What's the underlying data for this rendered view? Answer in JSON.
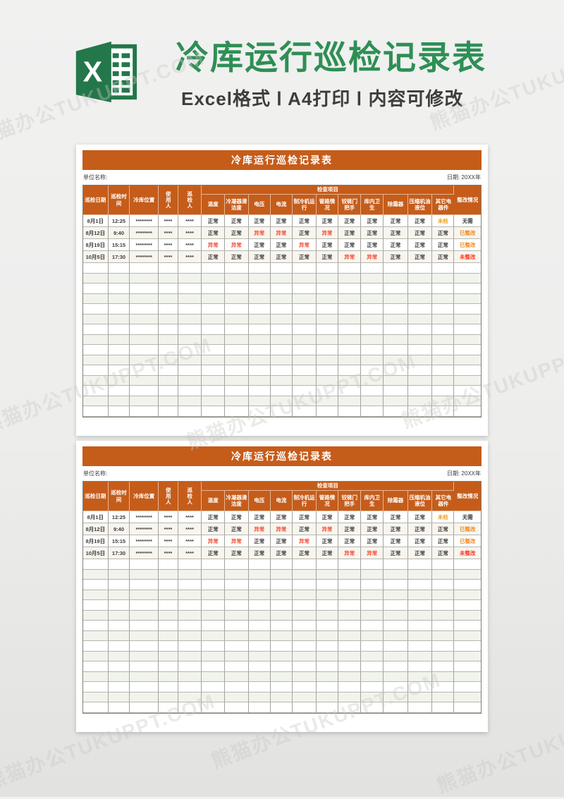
{
  "page": {
    "title": "冷库运行巡检记录表",
    "subtitle": "Excel格式 Ⅰ A4打印 Ⅰ 内容可修改",
    "watermark": "熊猫办公TUKUPPT.COM",
    "logo": "excel-logo",
    "colors": {
      "title_green": "#2e8f55",
      "logo_green": "#23774a",
      "accent_orange": "#c55c1a",
      "subtitle_gray": "#3d3d3d",
      "status_normal": "#3c3c3c",
      "status_abnormal": "#f74a31",
      "status_unchecked": "#f0a21c",
      "status_rectified": "#ef8a1f",
      "status_unrectified": "#f8381c"
    },
    "status_colors": {
      "正常": "#3c3c3c",
      "异常": "#f74a31",
      "未检": "#f0a21c",
      "已整改": "#ef8a1f",
      "未整改": "#f8381c",
      "无需": "#3c3c3c"
    }
  },
  "tables": [
    {
      "title": "冷库运行巡检记录表",
      "unit_label": "单位名称:",
      "date_label": "日期: 20XX年",
      "group_header": "检查项目",
      "columns_merged": [
        "巡检日期",
        "巡检时间",
        "冷库位置",
        "使用人",
        "巡检人"
      ],
      "vertical_merged_indices": [
        3,
        4
      ],
      "check_columns": [
        "温度",
        "冷凝器清洁度",
        "电压",
        "电流",
        "制冷机运行",
        "管路情况",
        "铰链门把手",
        "库内卫生",
        "除霜器",
        "压缩机油液位",
        "其它电器件"
      ],
      "last_column": "整改情况",
      "col_widths_pct": [
        6.3,
        5.4,
        7.2,
        4.9,
        5.9,
        5.8,
        5.9,
        5.5,
        5.5,
        6.0,
        5.5,
        5.7,
        5.6,
        6.1,
        6.1,
        5.5,
        6.6
      ],
      "rows": [
        [
          "8月1日",
          "12:25",
          "********",
          "****",
          "****",
          "正常",
          "正常",
          "正常",
          "正常",
          "正常",
          "正常",
          "正常",
          "正常",
          "正常",
          "正常",
          "未检",
          "无需"
        ],
        [
          "8月12日",
          "9:40",
          "********",
          "****",
          "****",
          "正常",
          "正常",
          "异常",
          "异常",
          "正常",
          "异常",
          "正常",
          "正常",
          "正常",
          "正常",
          "正常",
          "已整改"
        ],
        [
          "8月19日",
          "15:15",
          "********",
          "****",
          "****",
          "异常",
          "异常",
          "正常",
          "正常",
          "异常",
          "正常",
          "正常",
          "正常",
          "正常",
          "正常",
          "正常",
          "已整改"
        ],
        [
          "10月5日",
          "17:30",
          "********",
          "****",
          "****",
          "正常",
          "正常",
          "正常",
          "正常",
          "正常",
          "正常",
          "异常",
          "异常",
          "正常",
          "正常",
          "正常",
          "未整改"
        ]
      ],
      "empty_rows": 15
    },
    {
      "title": "冷库运行巡检记录表",
      "unit_label": "单位名称:",
      "date_label": "日期: 20XX年",
      "group_header": "检查项目",
      "columns_merged": [
        "巡检日期",
        "巡检时间",
        "冷库位置",
        "使用人",
        "巡检人"
      ],
      "vertical_merged_indices": [
        3,
        4
      ],
      "check_columns": [
        "温度",
        "冷凝器清洁度",
        "电压",
        "电流",
        "制冷机运行",
        "管路情况",
        "铰链门把手",
        "库内卫生",
        "除霜器",
        "压缩机油液位",
        "其它电器件"
      ],
      "last_column": "整改情况",
      "col_widths_pct": [
        6.3,
        5.4,
        7.2,
        4.9,
        5.9,
        5.8,
        5.9,
        5.5,
        5.5,
        6.0,
        5.5,
        5.7,
        5.6,
        6.1,
        6.1,
        5.5,
        6.6
      ],
      "rows": [
        [
          "8月1日",
          "12:25",
          "********",
          "****",
          "****",
          "正常",
          "正常",
          "正常",
          "正常",
          "正常",
          "正常",
          "正常",
          "正常",
          "正常",
          "正常",
          "未检",
          "无需"
        ],
        [
          "8月12日",
          "9:40",
          "********",
          "****",
          "****",
          "正常",
          "正常",
          "异常",
          "异常",
          "正常",
          "异常",
          "正常",
          "正常",
          "正常",
          "正常",
          "正常",
          "已整改"
        ],
        [
          "8月19日",
          "15:15",
          "********",
          "****",
          "****",
          "异常",
          "异常",
          "正常",
          "正常",
          "异常",
          "正常",
          "正常",
          "正常",
          "正常",
          "正常",
          "正常",
          "已整改"
        ],
        [
          "10月5日",
          "17:30",
          "********",
          "****",
          "****",
          "正常",
          "正常",
          "正常",
          "正常",
          "正常",
          "正常",
          "异常",
          "异常",
          "正常",
          "正常",
          "正常",
          "未整改"
        ]
      ],
      "empty_rows": 15
    }
  ]
}
